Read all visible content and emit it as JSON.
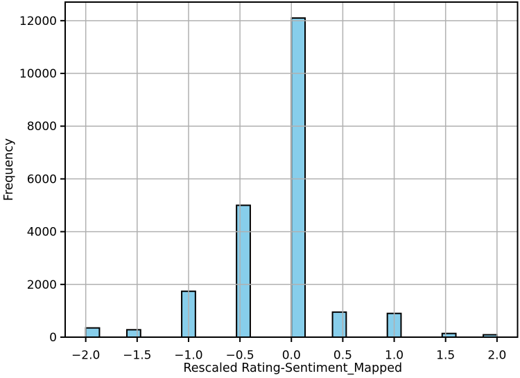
{
  "chart_data": {
    "type": "bar",
    "subtype": "histogram",
    "title": "",
    "xlabel": "Rescaled Rating-Sentiment_Mapped",
    "ylabel": "Frequency",
    "xlim": [
      -2.2,
      2.2
    ],
    "ylim": [
      0,
      12705
    ],
    "grid": true,
    "legend_position": "none",
    "bin_count": 30,
    "bin_range": [
      -2.0,
      2.0
    ],
    "bin_width": 0.1333333,
    "bars": [
      {
        "value": -2.0,
        "bin_left": -2.0,
        "count": 350
      },
      {
        "value": -1.5,
        "bin_left": -1.6,
        "count": 280
      },
      {
        "value": -1.0,
        "bin_left": -1.0666667,
        "count": 1740
      },
      {
        "value": -0.5,
        "bin_left": -0.5333333,
        "count": 5000
      },
      {
        "value": 0.0,
        "bin_left": 0.0,
        "count": 12100
      },
      {
        "value": 0.5,
        "bin_left": 0.4,
        "count": 950
      },
      {
        "value": 1.0,
        "bin_left": 0.9333333,
        "count": 900
      },
      {
        "value": 1.5,
        "bin_left": 1.4666667,
        "count": 140
      },
      {
        "value": 2.0,
        "bin_left": 1.8666667,
        "count": 90
      }
    ],
    "xticks": [
      {
        "value": -2.0,
        "label": "−2.0"
      },
      {
        "value": -1.5,
        "label": "−1.5"
      },
      {
        "value": -1.0,
        "label": "−1.0"
      },
      {
        "value": -0.5,
        "label": "−0.5"
      },
      {
        "value": 0.0,
        "label": "0.0"
      },
      {
        "value": 0.5,
        "label": "0.5"
      },
      {
        "value": 1.0,
        "label": "1.0"
      },
      {
        "value": 1.5,
        "label": "1.5"
      },
      {
        "value": 2.0,
        "label": "2.0"
      }
    ],
    "yticks": [
      {
        "value": 0,
        "label": "0"
      },
      {
        "value": 2000,
        "label": "2000"
      },
      {
        "value": 4000,
        "label": "4000"
      },
      {
        "value": 6000,
        "label": "6000"
      },
      {
        "value": 8000,
        "label": "8000"
      },
      {
        "value": 10000,
        "label": "10000"
      },
      {
        "value": 12000,
        "label": "12000"
      }
    ],
    "colors": {
      "bar_fill": "#87CEEB",
      "bar_edge": "#000000",
      "grid": "#b0b0b0",
      "spine": "#000000",
      "background": "#ffffff",
      "text": "#000000"
    }
  }
}
